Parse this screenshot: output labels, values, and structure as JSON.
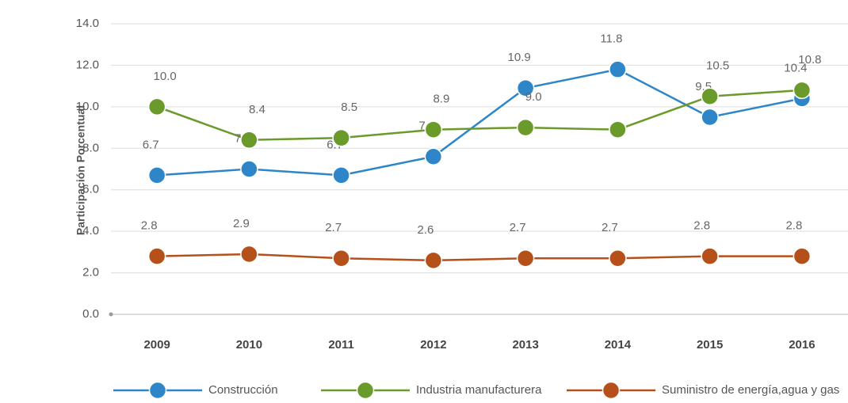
{
  "chart_data": {
    "type": "line",
    "y_label": "Participación Porcentual",
    "categories": [
      "2009",
      "2010",
      "2011",
      "2012",
      "2013",
      "2014",
      "2015",
      "2016"
    ],
    "series": [
      {
        "name": "Construcción",
        "color": "#2e86c8",
        "values": [
          6.7,
          7.0,
          6.7,
          7.6,
          10.9,
          11.8,
          9.5,
          10.4
        ],
        "value_labels": [
          "6.7",
          "7.0",
          "6.7",
          "7.6",
          "10.9",
          "11.8",
          "9.5",
          "10.4"
        ]
      },
      {
        "name": "Industria manufacturera",
        "color": "#6a9a2a",
        "values": [
          10.0,
          8.4,
          8.5,
          8.9,
          9.0,
          8.9,
          10.5,
          10.8
        ],
        "value_labels": [
          "10.0",
          "8.4",
          "8.5",
          "8.9",
          "9.0",
          null,
          "10.5",
          "10.8"
        ]
      },
      {
        "name": "Suministro de energía,agua y gas",
        "color": "#b5501a",
        "values": [
          2.8,
          2.9,
          2.7,
          2.6,
          2.7,
          2.7,
          2.8,
          2.8
        ],
        "value_labels": [
          "2.8",
          "2.9",
          "2.7",
          "2.6",
          "2.7",
          "2.7",
          "2.8",
          "2.8"
        ]
      }
    ],
    "ylim": [
      0,
      14
    ],
    "yticks": [
      {
        "value": 0,
        "label": "0.0"
      },
      {
        "value": 2,
        "label": "2.0"
      },
      {
        "value": 4,
        "label": "4.0"
      },
      {
        "value": 6,
        "label": "6.0"
      },
      {
        "value": 8,
        "label": "8.0"
      },
      {
        "value": 10,
        "label": "10.0"
      },
      {
        "value": 12,
        "label": "12.0"
      },
      {
        "value": 14,
        "label": "14.0"
      }
    ],
    "grid": true
  }
}
